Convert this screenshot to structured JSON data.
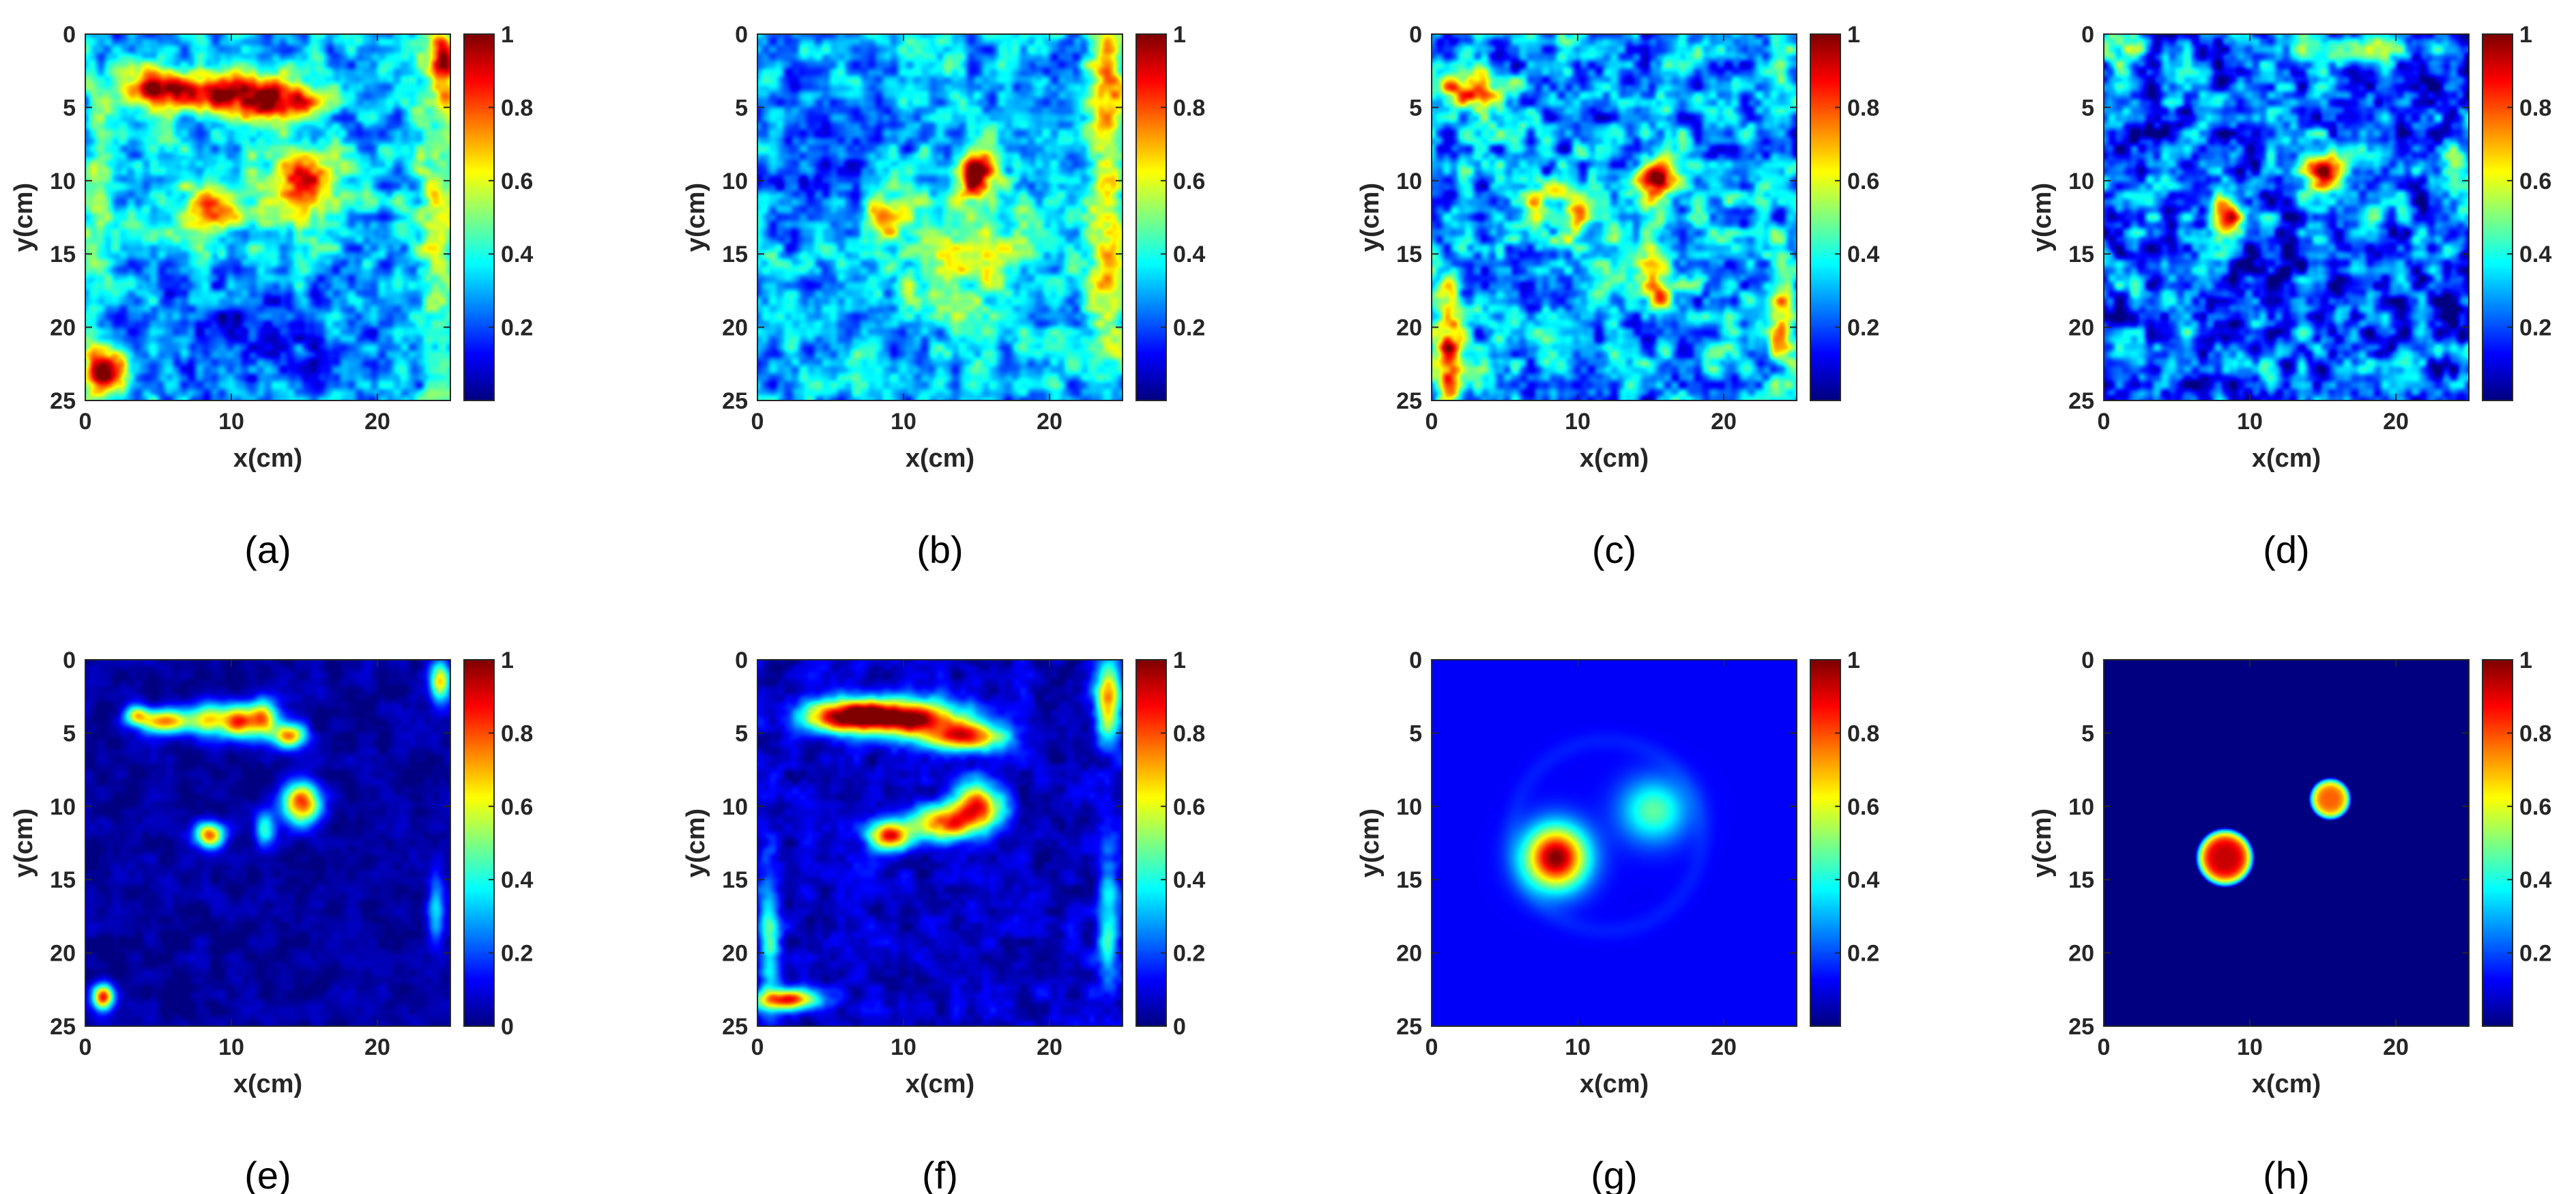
{
  "colormap": "jet",
  "colormap_stops": [
    "#00008f",
    "#0000ff",
    "#00ffff",
    "#ffff00",
    "#ff0000",
    "#800000"
  ],
  "chart_data": [
    {
      "type": "heatmap",
      "caption": "(a)",
      "xlabel": "x(cm)",
      "ylabel": "y(cm)",
      "xlim": [
        0,
        25
      ],
      "ylim": [
        0,
        25
      ],
      "y_reversed": true,
      "xticks": [
        0,
        10,
        20
      ],
      "yticks": [
        0,
        5,
        10,
        15,
        20,
        25
      ],
      "colorbar_range": [
        0,
        1
      ],
      "colorbar_ticks": [
        "0.2",
        "0.4",
        "0.6",
        "0.8",
        "1"
      ],
      "noise": 0.17,
      "background": 0.3,
      "features": [
        {
          "kind": "blob",
          "x": 4.5,
          "y": 3.8,
          "sx": 2.0,
          "sy": 0.9,
          "v": 0.55
        },
        {
          "kind": "blob",
          "x": 9.5,
          "y": 4.0,
          "sx": 3.2,
          "sy": 1.0,
          "v": 0.6
        },
        {
          "kind": "blob",
          "x": 13.5,
          "y": 4.8,
          "sx": 2.0,
          "sy": 0.9,
          "v": 0.5
        },
        {
          "kind": "blob",
          "x": 15.0,
          "y": 9.8,
          "sx": 1.2,
          "sy": 1.3,
          "v": 0.55
        },
        {
          "kind": "blob",
          "x": 8.5,
          "y": 12.0,
          "sx": 1.1,
          "sy": 1.0,
          "v": 0.45
        },
        {
          "kind": "blob",
          "x": 12.0,
          "y": 11.0,
          "sx": 4.5,
          "sy": 2.5,
          "v": 0.2
        },
        {
          "kind": "blob",
          "x": 24.5,
          "y": 2.0,
          "sx": 0.7,
          "sy": 2.0,
          "v": 0.55
        },
        {
          "kind": "blob",
          "x": 1.5,
          "y": 23.0,
          "sx": 1.2,
          "sy": 1.0,
          "v": 0.6
        },
        {
          "kind": "blob",
          "x": 24.0,
          "y": 13.0,
          "sx": 1.0,
          "sy": 8.0,
          "v": 0.25
        },
        {
          "kind": "blob",
          "x": 0.8,
          "y": 16.0,
          "sx": 0.8,
          "sy": 8.0,
          "v": 0.2
        },
        {
          "kind": "blob",
          "x": 12.0,
          "y": 21.0,
          "sx": 7.0,
          "sy": 2.5,
          "v": -0.15
        }
      ]
    },
    {
      "type": "heatmap",
      "caption": "(b)",
      "xlabel": "x(cm)",
      "ylabel": "y(cm)",
      "xlim": [
        0,
        25
      ],
      "ylim": [
        0,
        25
      ],
      "y_reversed": true,
      "xticks": [
        0,
        10,
        20
      ],
      "yticks": [
        0,
        5,
        10,
        15,
        20,
        25
      ],
      "colorbar_range": [
        0,
        1
      ],
      "colorbar_ticks": [
        "0.2",
        "0.4",
        "0.6",
        "0.8",
        "1"
      ],
      "noise": 0.17,
      "background": 0.3,
      "features": [
        {
          "kind": "blob",
          "x": 15.0,
          "y": 9.5,
          "sx": 1.0,
          "sy": 1.1,
          "v": 0.65
        },
        {
          "kind": "blob",
          "x": 8.5,
          "y": 12.3,
          "sx": 0.9,
          "sy": 1.0,
          "v": 0.45
        },
        {
          "kind": "blob",
          "x": 14.0,
          "y": 15.0,
          "sx": 3.5,
          "sy": 3.0,
          "v": 0.3
        },
        {
          "kind": "blob",
          "x": 24.0,
          "y": 4.0,
          "sx": 0.8,
          "sy": 3.5,
          "v": 0.45
        },
        {
          "kind": "blob",
          "x": 24.0,
          "y": 16.0,
          "sx": 0.8,
          "sy": 5.0,
          "v": 0.4
        },
        {
          "kind": "blob",
          "x": 4.0,
          "y": 8.0,
          "sx": 2.5,
          "sy": 3.0,
          "v": -0.15
        }
      ]
    },
    {
      "type": "heatmap",
      "caption": "(c)",
      "xlabel": "x(cm)",
      "ylabel": "y(cm)",
      "xlim": [
        0,
        25
      ],
      "ylim": [
        0,
        25
      ],
      "y_reversed": true,
      "xticks": [
        0,
        10,
        20
      ],
      "yticks": [
        0,
        5,
        10,
        15,
        20,
        25
      ],
      "colorbar_range": [
        0,
        1
      ],
      "colorbar_ticks": [
        "0.2",
        "0.4",
        "0.6",
        "0.8",
        "1"
      ],
      "noise": 0.22,
      "background": 0.28,
      "features": [
        {
          "kind": "blob",
          "x": 15.3,
          "y": 9.7,
          "sx": 0.9,
          "sy": 0.9,
          "v": 0.7
        },
        {
          "kind": "ring",
          "x": 8.5,
          "y": 12.5,
          "r": 1.6,
          "w": 0.45,
          "v": 0.3
        },
        {
          "kind": "blob",
          "x": 2.5,
          "y": 3.8,
          "sx": 1.8,
          "sy": 0.8,
          "v": 0.55
        },
        {
          "kind": "blob",
          "x": 1.2,
          "y": 21.0,
          "sx": 0.7,
          "sy": 3.0,
          "v": 0.55
        },
        {
          "kind": "blob",
          "x": 24.0,
          "y": 19.0,
          "sx": 0.7,
          "sy": 2.5,
          "v": 0.5
        },
        {
          "kind": "blob",
          "x": 15.5,
          "y": 17.5,
          "sx": 0.6,
          "sy": 1.0,
          "v": 0.4
        },
        {
          "kind": "blob",
          "x": 14.0,
          "y": 14.5,
          "sx": 3.0,
          "sy": 2.5,
          "v": 0.15
        }
      ]
    },
    {
      "type": "heatmap",
      "caption": "(d)",
      "xlabel": "x(cm)",
      "ylabel": "y(cm)",
      "xlim": [
        0,
        25
      ],
      "ylim": [
        0,
        25
      ],
      "y_reversed": true,
      "xticks": [
        0,
        10,
        20
      ],
      "yticks": [
        0,
        5,
        10,
        15,
        20,
        25
      ],
      "colorbar_range": [
        0,
        1
      ],
      "colorbar_ticks": [
        "0.2",
        "0.4",
        "0.6",
        "0.8",
        "1"
      ],
      "noise": 0.24,
      "background": 0.2,
      "features": [
        {
          "kind": "blob",
          "x": 15.2,
          "y": 9.4,
          "sx": 0.9,
          "sy": 0.9,
          "v": 0.75
        },
        {
          "kind": "blob",
          "x": 8.3,
          "y": 12.5,
          "sx": 0.8,
          "sy": 1.0,
          "v": 0.75
        },
        {
          "kind": "blob",
          "x": 18.5,
          "y": 12.5,
          "sx": 0.7,
          "sy": 0.7,
          "v": 0.35
        },
        {
          "kind": "blob",
          "x": 24.0,
          "y": 9.5,
          "sx": 0.8,
          "sy": 1.5,
          "v": 0.45
        },
        {
          "kind": "blob",
          "x": 17.0,
          "y": 1.0,
          "sx": 3.0,
          "sy": 0.8,
          "v": 0.35
        },
        {
          "kind": "blob",
          "x": 1.5,
          "y": 1.0,
          "sx": 1.0,
          "sy": 0.8,
          "v": 0.4
        }
      ]
    },
    {
      "type": "heatmap",
      "caption": "(e)",
      "xlabel": "x(cm)",
      "ylabel": "y(cm)",
      "xlim": [
        0,
        25
      ],
      "ylim": [
        0,
        25
      ],
      "y_reversed": true,
      "xticks": [
        0,
        10,
        20
      ],
      "yticks": [
        0,
        5,
        10,
        15,
        20,
        25
      ],
      "colorbar_range": [
        0,
        1
      ],
      "colorbar_ticks": [
        "0",
        "0.2",
        "0.4",
        "0.6",
        "0.8",
        "1"
      ],
      "noise": 0.05,
      "background": 0.03,
      "features": [
        {
          "kind": "blob",
          "x": 5.5,
          "y": 4.2,
          "sx": 1.2,
          "sy": 0.6,
          "v": 0.75
        },
        {
          "kind": "blob",
          "x": 8.5,
          "y": 4.0,
          "sx": 0.9,
          "sy": 0.8,
          "v": 0.6
        },
        {
          "kind": "blob",
          "x": 10.5,
          "y": 4.2,
          "sx": 0.8,
          "sy": 0.8,
          "v": 0.75
        },
        {
          "kind": "blob",
          "x": 12.2,
          "y": 4.0,
          "sx": 0.7,
          "sy": 0.9,
          "v": 0.7
        },
        {
          "kind": "blob",
          "x": 14.0,
          "y": 5.2,
          "sx": 0.8,
          "sy": 0.6,
          "v": 0.7
        },
        {
          "kind": "blob",
          "x": 3.5,
          "y": 3.8,
          "sx": 0.6,
          "sy": 0.5,
          "v": 0.5
        },
        {
          "kind": "blob",
          "x": 14.8,
          "y": 9.8,
          "sx": 0.9,
          "sy": 1.0,
          "v": 0.8
        },
        {
          "kind": "blob",
          "x": 8.5,
          "y": 12.0,
          "sx": 0.7,
          "sy": 0.6,
          "v": 0.75
        },
        {
          "kind": "blob",
          "x": 12.3,
          "y": 11.5,
          "sx": 0.5,
          "sy": 0.8,
          "v": 0.4
        },
        {
          "kind": "blob",
          "x": 1.2,
          "y": 23.0,
          "sx": 0.5,
          "sy": 0.6,
          "v": 0.85
        },
        {
          "kind": "blob",
          "x": 24.3,
          "y": 1.5,
          "sx": 0.5,
          "sy": 1.0,
          "v": 0.6
        },
        {
          "kind": "blob",
          "x": 24.0,
          "y": 17.0,
          "sx": 0.4,
          "sy": 2.0,
          "v": 0.3
        }
      ]
    },
    {
      "type": "heatmap",
      "caption": "(f)",
      "xlabel": "x(cm)",
      "ylabel": "y(cm)",
      "xlim": [
        0,
        25
      ],
      "ylim": [
        0,
        25
      ],
      "y_reversed": true,
      "xticks": [
        0,
        10,
        20
      ],
      "yticks": [
        0,
        5,
        10,
        15,
        20,
        25
      ],
      "colorbar_range": [
        0,
        1
      ],
      "colorbar_ticks": [
        "0",
        "0.2",
        "0.4",
        "0.6",
        "0.8",
        "1"
      ],
      "noise": 0.08,
      "background": 0.07,
      "features": [
        {
          "kind": "blob",
          "x": 6.0,
          "y": 3.8,
          "sx": 2.2,
          "sy": 0.8,
          "v": 0.85
        },
        {
          "kind": "blob",
          "x": 10.5,
          "y": 4.0,
          "sx": 2.5,
          "sy": 0.9,
          "v": 0.9
        },
        {
          "kind": "blob",
          "x": 14.5,
          "y": 5.3,
          "sx": 1.8,
          "sy": 0.7,
          "v": 0.75
        },
        {
          "kind": "blob",
          "x": 15.0,
          "y": 10.0,
          "sx": 1.2,
          "sy": 1.1,
          "v": 0.8
        },
        {
          "kind": "blob",
          "x": 12.5,
          "y": 11.2,
          "sx": 1.5,
          "sy": 0.8,
          "v": 0.7
        },
        {
          "kind": "blob",
          "x": 9.0,
          "y": 12.0,
          "sx": 1.0,
          "sy": 0.7,
          "v": 0.75
        },
        {
          "kind": "blob",
          "x": 24.0,
          "y": 2.5,
          "sx": 0.6,
          "sy": 2.0,
          "v": 0.65
        },
        {
          "kind": "blob",
          "x": 24.0,
          "y": 18.0,
          "sx": 0.5,
          "sy": 3.5,
          "v": 0.35
        },
        {
          "kind": "blob",
          "x": 0.8,
          "y": 19.0,
          "sx": 0.5,
          "sy": 3.5,
          "v": 0.35
        },
        {
          "kind": "blob",
          "x": 2.0,
          "y": 23.2,
          "sx": 1.5,
          "sy": 0.5,
          "v": 0.8
        }
      ]
    },
    {
      "type": "heatmap",
      "caption": "(g)",
      "xlabel": "x(cm)",
      "ylabel": "y(cm)",
      "xlim": [
        0,
        25
      ],
      "ylim": [
        0,
        25
      ],
      "y_reversed": true,
      "xticks": [
        0,
        10,
        20
      ],
      "yticks": [
        0,
        5,
        10,
        15,
        20,
        25
      ],
      "colorbar_range": [
        0,
        1
      ],
      "colorbar_ticks": [
        "0.2",
        "0.4",
        "0.6",
        "0.8",
        "1"
      ],
      "noise": 0.0,
      "background": 0.12,
      "features": [
        {
          "kind": "blob",
          "x": 8.5,
          "y": 13.5,
          "sx": 1.5,
          "sy": 1.5,
          "v": 0.88
        },
        {
          "kind": "blob",
          "x": 15.2,
          "y": 10.3,
          "sx": 1.6,
          "sy": 1.5,
          "v": 0.35
        },
        {
          "kind": "ring",
          "x": 12.0,
          "y": 12.0,
          "r": 6.5,
          "w": 0.5,
          "v": 0.03
        }
      ]
    },
    {
      "type": "heatmap",
      "caption": "(h)",
      "xlabel": "x(cm)",
      "ylabel": "y(cm)",
      "xlim": [
        0,
        25
      ],
      "ylim": [
        0,
        25
      ],
      "y_reversed": true,
      "xticks": [
        0,
        10,
        20
      ],
      "yticks": [
        0,
        5,
        10,
        15,
        20,
        25
      ],
      "colorbar_range": [
        0,
        1
      ],
      "colorbar_ticks": [
        "0.2",
        "0.4",
        "0.6",
        "0.8",
        "1"
      ],
      "noise": 0.0,
      "background": 0.0,
      "features": [
        {
          "kind": "disk",
          "x": 8.3,
          "y": 13.5,
          "r": 1.8,
          "v": 0.93
        },
        {
          "kind": "disk",
          "x": 15.5,
          "y": 9.5,
          "r": 1.3,
          "v": 0.78
        }
      ]
    }
  ]
}
